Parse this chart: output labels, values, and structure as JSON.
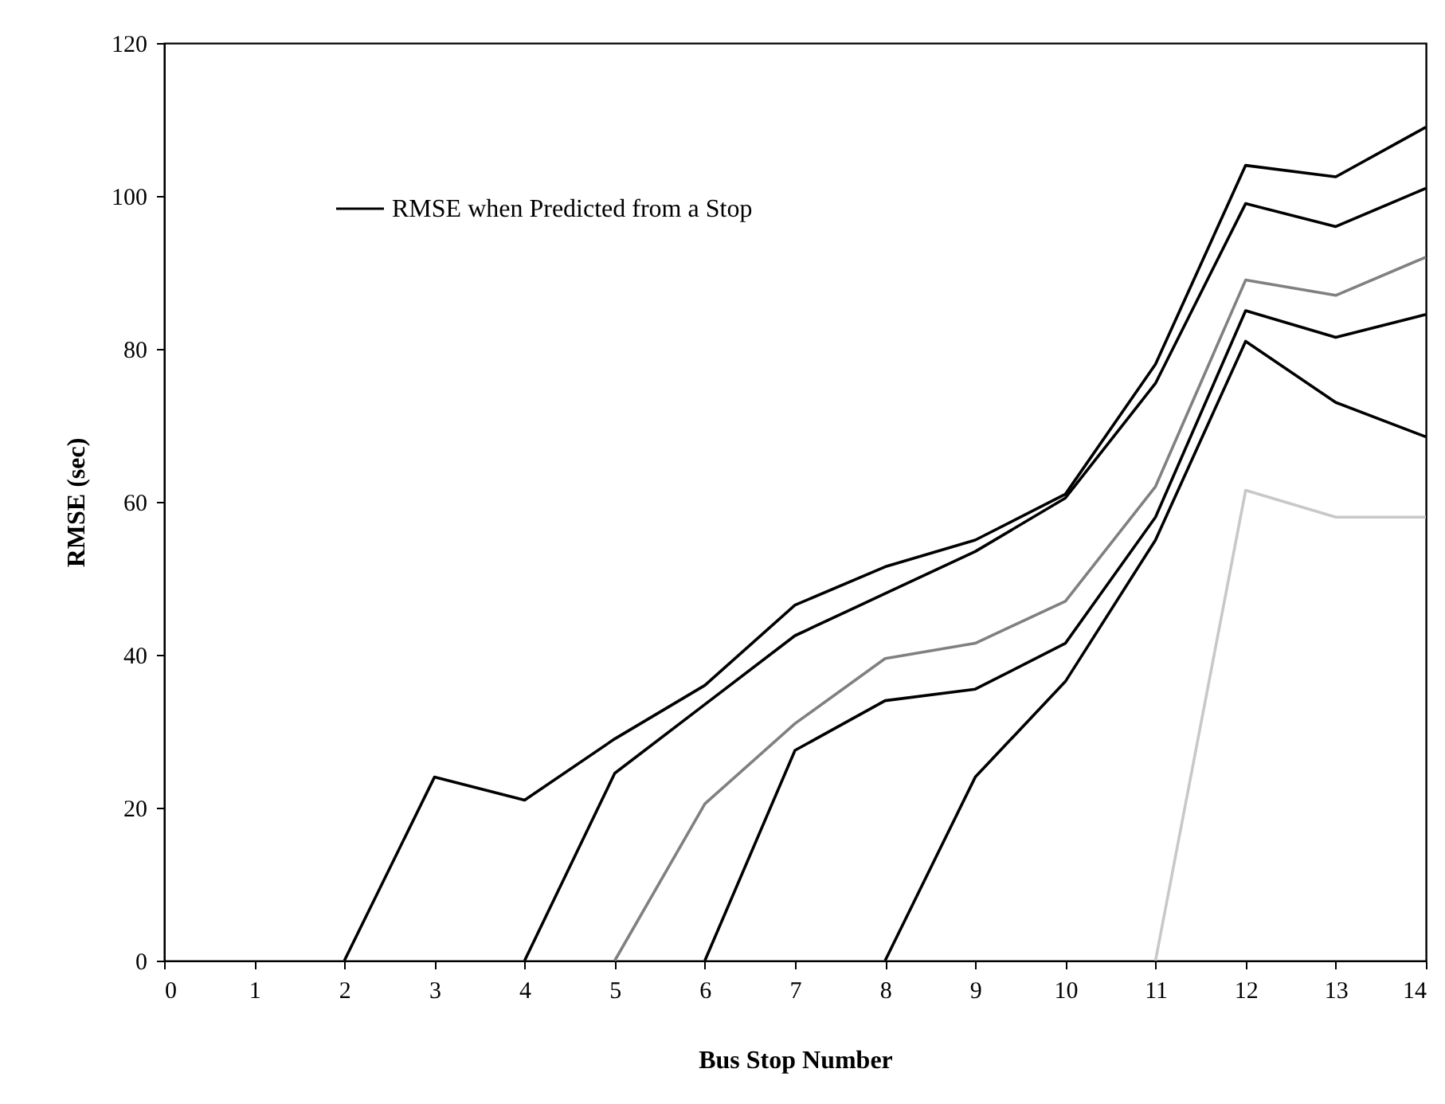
{
  "chart_data": {
    "type": "line",
    "xlabel": "Bus Stop Number",
    "ylabel": "RMSE (sec)",
    "series": [
      {
        "name": "RMSE when Predicted from a Stop",
        "color": "#000000",
        "x": [
          2,
          3,
          4,
          5,
          6,
          7,
          8,
          9,
          10,
          11,
          12,
          13,
          14
        ],
        "values": [
          0,
          24,
          21,
          29,
          36,
          46.5,
          51.5,
          55,
          61,
          78,
          104,
          102.5,
          109
        ]
      },
      {
        "color": "#000000",
        "x": [
          4,
          5,
          6,
          7,
          8,
          9,
          10,
          11,
          12,
          13,
          14
        ],
        "values": [
          0,
          24.5,
          33.5,
          42.5,
          48,
          53.5,
          60.5,
          75.5,
          99,
          96,
          101
        ]
      },
      {
        "color": "#808080",
        "x": [
          5,
          6,
          7,
          8,
          9,
          10,
          11,
          12,
          13,
          14
        ],
        "values": [
          0,
          20.5,
          31,
          39.5,
          41.5,
          47,
          62,
          89,
          87,
          92
        ]
      },
      {
        "color": "#000000",
        "x": [
          6,
          7,
          8,
          9,
          10,
          11,
          12,
          13,
          14
        ],
        "values": [
          0,
          27.5,
          34,
          35.5,
          41.5,
          58,
          85,
          81.5,
          84.5
        ]
      },
      {
        "color": "#000000",
        "x": [
          8,
          9,
          10,
          11,
          12,
          13,
          14
        ],
        "values": [
          0,
          24,
          36.5,
          55,
          81,
          73,
          68.5
        ]
      },
      {
        "color": "#c8c8c8",
        "x": [
          11,
          12,
          13,
          14
        ],
        "values": [
          0,
          61.5,
          58,
          58
        ]
      }
    ],
    "xlim": [
      0,
      14
    ],
    "xticks": [
      0,
      1,
      2,
      3,
      4,
      5,
      6,
      7,
      8,
      9,
      10,
      11,
      12,
      13,
      14
    ],
    "ylim": [
      0,
      120
    ],
    "yticks": [
      0,
      20,
      40,
      60,
      80,
      100,
      120
    ],
    "grid": false,
    "legend": "top left",
    "marker": "none",
    "line_style": "solid"
  }
}
